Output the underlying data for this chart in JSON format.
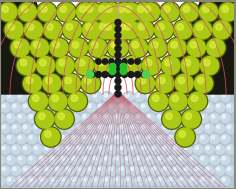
{
  "fig_width": 2.36,
  "fig_height": 1.89,
  "dpi": 100,
  "bg_color": "#ffffff",
  "substrate_top_color": "#c8d8e8",
  "electrode_color_main": "#aac814",
  "electrode_color_dark": "#506008",
  "electrode_color_highlight": "#e0f040",
  "electrode_color_shadow": "#7a9010",
  "molecule_atom_color": "#1a1a1a",
  "molecule_green_color": "#28c028",
  "field_arc_color": "#d05868",
  "gate_line_color": "#c04858",
  "gate_top_line_color": "#e090a0",
  "substrate_atom_color": "#c0ccd8",
  "substrate_atom_highlight": "#e8f0f8",
  "dark_region_color": "#181810"
}
